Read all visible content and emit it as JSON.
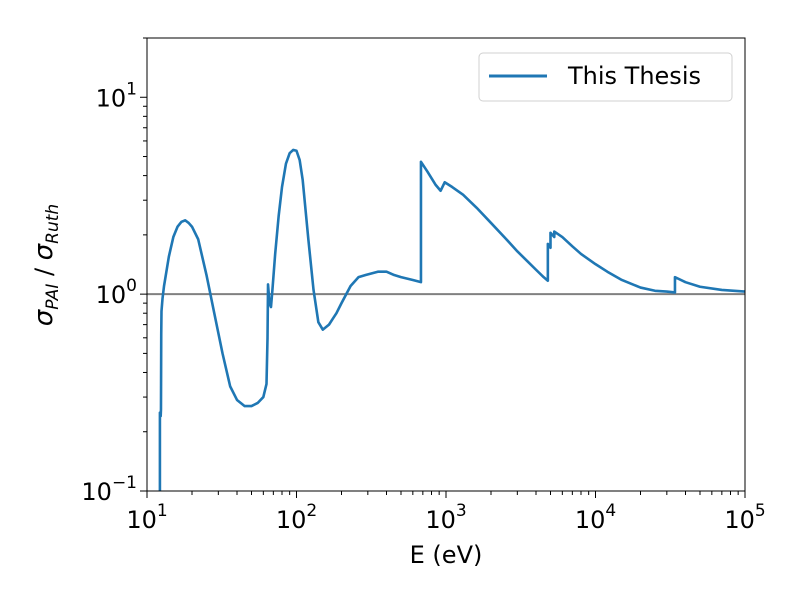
{
  "chart_data": {
    "type": "line",
    "title": "",
    "xlabel": "E (eV)",
    "ylabel_parts": {
      "sigma1": "σ",
      "sub1": "PAI",
      "slash": " / ",
      "sigma2": "σ",
      "sub2": "Ruth"
    },
    "xscale": "log",
    "yscale": "log",
    "xlim": [
      10,
      100000
    ],
    "ylim": [
      0.1,
      20
    ],
    "x_ticks": [
      {
        "value": 10,
        "base": "10",
        "exp": "1"
      },
      {
        "value": 100,
        "base": "10",
        "exp": "2"
      },
      {
        "value": 1000,
        "base": "10",
        "exp": "3"
      },
      {
        "value": 10000,
        "base": "10",
        "exp": "4"
      },
      {
        "value": 100000,
        "base": "10",
        "exp": "5"
      }
    ],
    "y_ticks": [
      {
        "value": 0.1,
        "base": "10",
        "exp": "−1"
      },
      {
        "value": 1,
        "base": "10",
        "exp": "0"
      },
      {
        "value": 10,
        "base": "10",
        "exp": "1"
      }
    ],
    "reference_line": {
      "y": 1.0,
      "color": "#808080"
    },
    "legend": {
      "position": "top-right"
    },
    "series": [
      {
        "name": "This Thesis",
        "color": "#1f77b4",
        "x": [
          12.2,
          12.2,
          12.35,
          12.4,
          12.45,
          12.5,
          12.7,
          13,
          14,
          15,
          16,
          17,
          18,
          19,
          20,
          22,
          25,
          28,
          32,
          36,
          40,
          45,
          50,
          55,
          60,
          63,
          64,
          64.5,
          66,
          67.5,
          69,
          72,
          76,
          80,
          85,
          90,
          95,
          100,
          105,
          110,
          120,
          130,
          140,
          150,
          165,
          175,
          185,
          200,
          230,
          260,
          290,
          350,
          400,
          450,
          500,
          600,
          680,
          680,
          750,
          850,
          920,
          980,
          1100,
          1300,
          1600,
          2000,
          2500,
          3000,
          3500,
          4000,
          4500,
          4800,
          4800,
          5000,
          5000,
          5300,
          5300,
          6000,
          7000,
          8000,
          10000,
          12000,
          15000,
          20000,
          25000,
          30000,
          34000,
          34000,
          40000,
          50000,
          70000,
          100000
        ],
        "y": [
          0.1,
          0.25,
          0.24,
          0.26,
          0.62,
          0.82,
          0.95,
          1.1,
          1.55,
          1.95,
          2.2,
          2.33,
          2.37,
          2.3,
          2.2,
          1.9,
          1.25,
          0.82,
          0.5,
          0.34,
          0.29,
          0.27,
          0.27,
          0.28,
          0.3,
          0.35,
          0.6,
          1.12,
          0.9,
          0.86,
          1.05,
          1.6,
          2.5,
          3.5,
          4.6,
          5.2,
          5.4,
          5.35,
          4.8,
          3.8,
          1.9,
          1.05,
          0.72,
          0.66,
          0.7,
          0.75,
          0.8,
          0.9,
          1.1,
          1.22,
          1.25,
          1.3,
          1.3,
          1.25,
          1.22,
          1.18,
          1.15,
          4.7,
          4.2,
          3.6,
          3.35,
          3.7,
          3.5,
          3.2,
          2.75,
          2.3,
          1.92,
          1.65,
          1.47,
          1.33,
          1.22,
          1.17,
          1.8,
          1.72,
          2.05,
          1.95,
          2.08,
          1.95,
          1.75,
          1.6,
          1.42,
          1.3,
          1.18,
          1.08,
          1.04,
          1.03,
          1.02,
          1.22,
          1.15,
          1.09,
          1.05,
          1.03
        ]
      }
    ]
  }
}
